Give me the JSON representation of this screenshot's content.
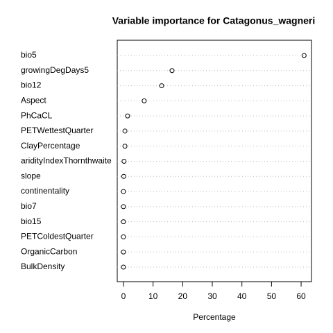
{
  "chart_data": {
    "type": "dot",
    "title": "Variable importance for Catagonus_wagneri",
    "x_label": "Percentage",
    "categories": [
      "bio5",
      "growingDegDays5",
      "bio12",
      "Aspect",
      "PhCaCL",
      "PETWettestQuarter",
      "ClayPercentage",
      "aridityIndexThornthwaite",
      "slope",
      "continentality",
      "bio7",
      "bio15",
      "PETColdestQuarter",
      "OrganicCarbon",
      "BulkDensity"
    ],
    "values": [
      61,
      16.4,
      12.9,
      7,
      1.4,
      0.5,
      0.5,
      0.2,
      0.1,
      0,
      0,
      0,
      0,
      0,
      0
    ],
    "xlim": [
      -2.1,
      63.5
    ],
    "xticks": [
      0,
      10,
      20,
      30,
      40,
      50,
      60
    ],
    "color": "#000000"
  }
}
